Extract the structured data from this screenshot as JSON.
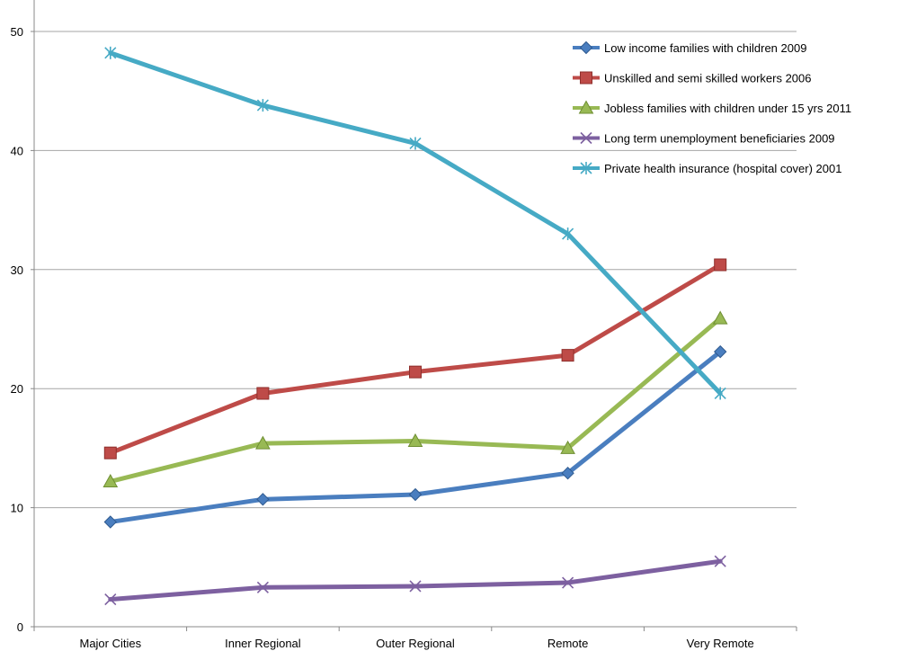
{
  "chart_data": {
    "type": "line",
    "categories": [
      "Major Cities",
      "Inner Regional",
      "Outer Regional",
      "Remote",
      "Very Remote"
    ],
    "ylim": [
      0,
      50
    ],
    "yticks": [
      0,
      10,
      20,
      30,
      40,
      50
    ],
    "grid": "horizontal",
    "legend_position": "top-right",
    "series": [
      {
        "name": "Low income families with children 2009",
        "color": "#4a7ebf",
        "marker": "diamond",
        "values": [
          8.8,
          10.7,
          11.1,
          12.9,
          23.1
        ]
      },
      {
        "name": "Unskilled and semi skilled workers 2006",
        "color": "#be4b48",
        "marker": "square",
        "values": [
          14.6,
          19.6,
          21.4,
          22.8,
          30.4
        ]
      },
      {
        "name": "Jobless families with children under 15 yrs 2011",
        "color": "#98b954",
        "marker": "triangle",
        "values": [
          12.2,
          15.4,
          15.6,
          15.0,
          25.9
        ]
      },
      {
        "name": "Long term unemployment beneficiaries 2009",
        "color": "#7d60a0",
        "marker": "x",
        "values": [
          2.3,
          3.3,
          3.4,
          3.7,
          5.5
        ]
      },
      {
        "name": "Private health insurance (hospital cover) 2001",
        "color": "#46aac5",
        "marker": "star",
        "values": [
          48.2,
          43.8,
          40.6,
          33.0,
          19.6
        ]
      }
    ]
  }
}
